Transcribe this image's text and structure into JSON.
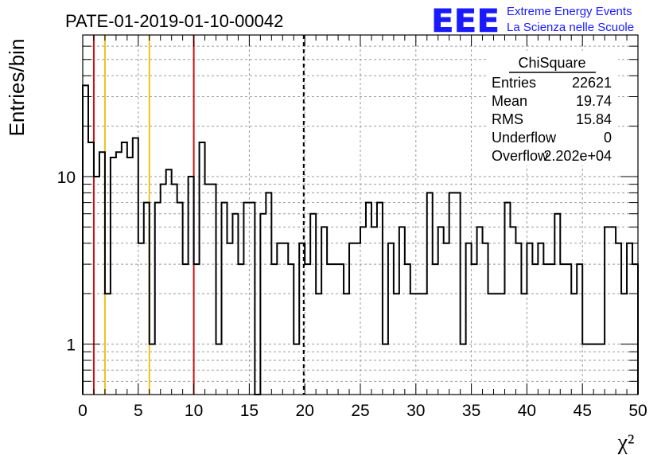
{
  "chart_data": {
    "type": "histogram",
    "title": "PATE-01-2019-01-10-00042",
    "xlabel": "χ²",
    "ylabel": "Entries/bin",
    "x_ticks": [
      "0",
      "5",
      "10",
      "15",
      "20",
      "25",
      "30",
      "35",
      "40",
      "45",
      "50"
    ],
    "y_ticks": [
      "1",
      "10"
    ],
    "xlim": [
      0,
      50
    ],
    "ylim": [
      0.5,
      70
    ],
    "y_scale": "log",
    "grid": true,
    "bin_width": 0.5,
    "values": [
      35,
      16,
      10,
      14,
      2,
      13,
      14,
      16,
      13,
      17,
      4,
      7,
      1,
      7,
      9,
      11,
      9,
      7,
      3,
      10,
      3,
      16,
      9,
      9,
      1,
      7,
      4,
      6,
      3,
      7,
      7,
      0,
      6,
      8,
      3,
      4,
      4,
      3,
      1,
      4,
      3,
      6,
      2,
      5,
      3,
      3,
      3,
      2,
      4,
      4,
      5,
      7,
      5,
      7,
      1,
      4,
      2,
      5,
      3,
      2,
      2,
      2,
      8,
      3,
      5,
      4,
      8,
      8,
      1,
      4,
      3,
      5,
      4,
      2,
      2,
      2,
      7,
      5,
      4,
      2,
      4,
      3,
      4,
      3,
      3,
      6,
      3,
      3,
      2,
      3,
      1,
      1,
      1,
      1,
      5,
      5,
      4,
      2,
      4,
      3
    ],
    "markers": [
      {
        "x": 1,
        "color": "#cc1111",
        "style": "solid"
      },
      {
        "x": 2,
        "color": "#f0c020",
        "style": "solid"
      },
      {
        "x": 6,
        "color": "#f0c020",
        "style": "solid"
      },
      {
        "x": 10,
        "color": "#cc1111",
        "style": "solid"
      },
      {
        "x": 19.9,
        "color": "#000000",
        "style": "dashed"
      }
    ],
    "stats": {
      "title": "ChiSquare",
      "rows": [
        {
          "label": "Entries",
          "value": "22621"
        },
        {
          "label": "Mean",
          "value": "19.74"
        },
        {
          "label": "RMS",
          "value": "15.84"
        },
        {
          "label": "Underflow",
          "value": "0"
        },
        {
          "label": "Overflow",
          "value": "2.202e+04"
        }
      ]
    }
  },
  "logo": {
    "mark": "EEE",
    "line1": "Extreme Energy Events",
    "line2": "La Scienza nelle Scuole",
    "color": "#1a1aff"
  }
}
